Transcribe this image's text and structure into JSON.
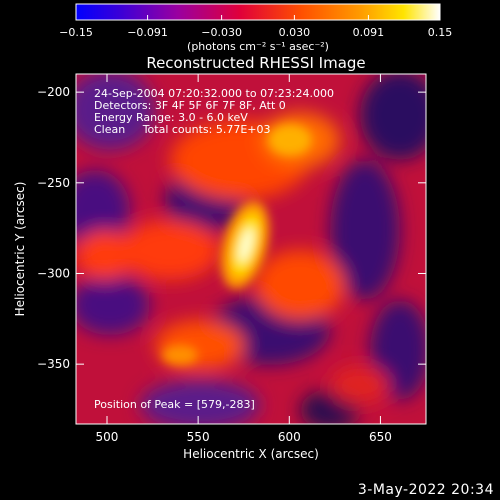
{
  "chart_data": {
    "type": "heatmap",
    "title": "Reconstructed RHESSI Image",
    "xlabel": "Heliocentric X (arcsec)",
    "ylabel": "Heliocentric Y (arcsec)",
    "xlim": [
      483,
      675
    ],
    "ylim": [
      -383,
      -190
    ],
    "x_ticks": [
      500,
      550,
      600,
      650
    ],
    "y_ticks": [
      -200,
      -250,
      -300,
      -350
    ],
    "colorbar": {
      "label": "(photons cm⁻² s⁻¹ asec⁻²)",
      "range": [
        -0.15,
        0.15
      ],
      "ticks": [
        "−0.15",
        "−0.091",
        "−0.030",
        "0.030",
        "0.091",
        "0.15"
      ],
      "colormap": [
        "#0000ff",
        "#ff0000",
        "#ffff00",
        "#ffffff"
      ]
    },
    "annotations": [
      "24-Sep-2004 07:20:32.000 to 07:23:24.000",
      "Detectors: 3F 4F 5F 6F 7F 8F, Att 0",
      "Energy Range: 3.0 - 6.0 keV",
      "Clean     Total counts: 5.77E+03"
    ],
    "peak_label": "Position of Peak = [579,-283]",
    "peak": [
      579,
      -283
    ]
  },
  "footer": {
    "date": "3-May-2022 20:34"
  }
}
